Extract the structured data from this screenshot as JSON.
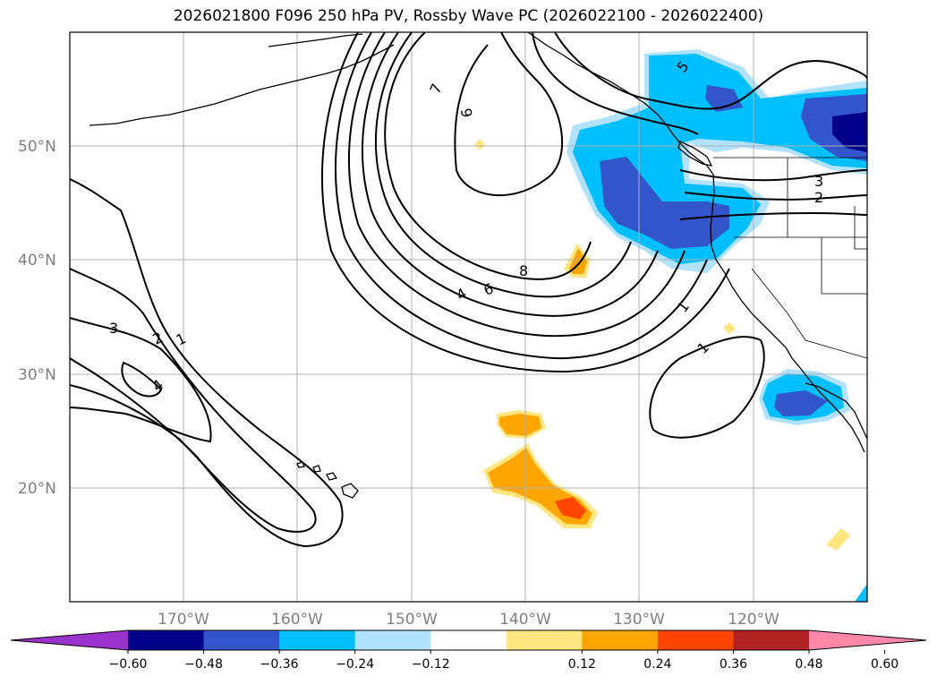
{
  "title": "2026021800 F096 250 hPa PV, Rossby Wave PC (2026022100 - 2026022400)",
  "map": {
    "lat_labels": [
      "50°N",
      "40°N",
      "30°N",
      "20°N"
    ],
    "lon_labels": [
      "170°W",
      "160°W",
      "150°W",
      "140°W",
      "130°W",
      "120°W"
    ],
    "contour_labels": [
      "7",
      "6",
      "8",
      "6",
      "4",
      "3",
      "2",
      "1",
      "4",
      "5",
      "3",
      "2",
      "1",
      "1"
    ]
  },
  "colorbar": {
    "ticks": [
      "−0.60",
      "−0.48",
      "−0.36",
      "−0.24",
      "−0.12",
      "0.12",
      "0.24",
      "0.36",
      "0.48",
      "0.60"
    ],
    "colors": [
      "#9933cc",
      "#00008b",
      "#3355cc",
      "#00bfff",
      "#b0e2ff",
      "#ffffff",
      "#ffe680",
      "#ffa500",
      "#ff4500",
      "#b22222",
      "#ff88aa"
    ]
  }
}
